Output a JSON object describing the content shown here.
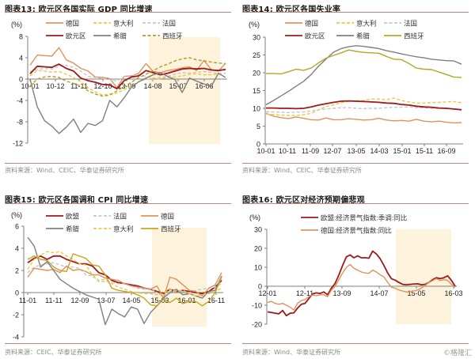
{
  "page": {
    "footer_watermark": "©格隆汇"
  },
  "chart_data": [
    {
      "id": "fig13",
      "type": "line",
      "title": "图表13:  欧元区各国实际 GDP 同比增速",
      "source": "资料来源：Wind、CEIC、华泰证券研究所",
      "ylabel": "(%)",
      "xlabel": "",
      "ylim": [
        -12,
        8
      ],
      "yticks": [
        -12,
        -8,
        -4,
        0,
        4,
        8
      ],
      "xtick_labels": [
        "10-01",
        "10-12",
        "11-11",
        "12-10",
        "13-09",
        "14-08",
        "15-07",
        "16-06"
      ],
      "shaded_range": [
        "14-06",
        "16-12"
      ],
      "legend_position": "top",
      "x_index_count": 28,
      "series": [
        {
          "name": "德国",
          "style": "solid",
          "color": "#e0925a",
          "values": [
            2.6,
            4.5,
            4.4,
            4.3,
            5.9,
            3.6,
            3.0,
            2.0,
            1.5,
            0.4,
            0.3,
            0.1,
            -1.6,
            0.5,
            0.6,
            1.1,
            2.9,
            1.4,
            1.2,
            1.6,
            1.8,
            2.1,
            2.3,
            1.6,
            3.5,
            1.8,
            1.5,
            3.0
          ]
        },
        {
          "name": "意大利",
          "style": "dashed",
          "color": "#f0c83c",
          "values": [
            0.6,
            1.6,
            1.5,
            1.3,
            1.4,
            0.9,
            0.3,
            -0.5,
            -1.6,
            -2.4,
            -3.0,
            -2.8,
            -2.6,
            -2.0,
            -1.2,
            -0.5,
            0.0,
            -0.1,
            0.1,
            0.3,
            0.4,
            0.6,
            0.9,
            1.0,
            0.8,
            0.8,
            1.0,
            1.1
          ]
        },
        {
          "name": "法国",
          "style": "dashed",
          "color": "#c8c4cc",
          "values": [
            1.4,
            1.8,
            2.0,
            1.9,
            2.4,
            2.6,
            2.2,
            1.5,
            0.5,
            0.3,
            0.1,
            -0.1,
            -0.4,
            0.5,
            0.7,
            0.8,
            0.5,
            0.2,
            0.3,
            0.5,
            0.9,
            1.2,
            1.1,
            1.3,
            1.4,
            1.3,
            1.0,
            1.1
          ]
        },
        {
          "name": "欧元区",
          "style": "solid",
          "color": "#a01818",
          "values": [
            1.0,
            2.4,
            2.3,
            2.2,
            2.8,
            2.0,
            1.5,
            0.2,
            -0.3,
            -0.6,
            -1.0,
            -1.1,
            -1.8,
            -0.3,
            0.4,
            0.6,
            1.6,
            1.2,
            0.8,
            1.1,
            1.5,
            1.9,
            2.0,
            1.9,
            2.0,
            1.7,
            1.6,
            1.8
          ]
        },
        {
          "name": "希腊",
          "style": "solid",
          "color": "#7f7f7f",
          "values": [
            0.0,
            -5.2,
            -7.8,
            -8.8,
            -10.2,
            -9.0,
            -7.5,
            -10.0,
            -8.3,
            -8.7,
            -7.8,
            -4.0,
            -5.2,
            -3.5,
            -1.5,
            -0.5,
            0.2,
            0.8,
            1.2,
            0.5,
            -0.1,
            -2.5,
            0.2,
            -0.4,
            -0.9,
            -1.4,
            1.1,
            0.3
          ]
        },
        {
          "name": "西班牙",
          "style": "dashed",
          "color": "#b49a22",
          "values": [
            -1.3,
            0.0,
            0.4,
            0.5,
            0.3,
            -0.4,
            -0.8,
            -1.3,
            -2.2,
            -2.8,
            -3.2,
            -3.0,
            -2.2,
            -1.4,
            -0.6,
            0.3,
            0.9,
            1.6,
            2.3,
            2.8,
            3.4,
            3.8,
            4.0,
            3.6,
            3.4,
            3.2,
            3.0,
            2.9
          ]
        }
      ]
    },
    {
      "id": "fig14",
      "type": "line",
      "title": "图表14:  欧元区各国失业率",
      "source": "资料来源：Wind、CEIC、华泰证券研究所",
      "ylabel": "(%)",
      "xlabel": "",
      "ylim": [
        0,
        30
      ],
      "yticks": [
        0,
        5,
        10,
        15,
        20,
        25,
        30
      ],
      "xtick_labels": [
        "10-01",
        "10-11",
        "11-09",
        "12-07",
        "13-05",
        "14-03",
        "15-01",
        "15-11",
        "16-09"
      ],
      "legend_position": "top",
      "x_index_count": 27,
      "series": [
        {
          "name": "德国",
          "style": "solid",
          "color": "#e0925a",
          "values": [
            8.6,
            7.8,
            7.4,
            7.1,
            7.6,
            7.2,
            6.8,
            6.7,
            7.3,
            6.8,
            6.8,
            7.1,
            6.9,
            6.7,
            6.8,
            7.2,
            6.7,
            6.5,
            6.6,
            6.4,
            6.9,
            6.4,
            6.2,
            6.4,
            6.1,
            5.9,
            6.0
          ]
        },
        {
          "name": "意大利",
          "style": "dashed",
          "color": "#f0c83c",
          "values": [
            8.4,
            8.3,
            8.1,
            8.0,
            8.0,
            8.2,
            8.6,
            9.6,
            10.5,
            11.0,
            11.6,
            12.0,
            12.1,
            12.2,
            12.6,
            12.6,
            12.4,
            12.9,
            12.2,
            11.8,
            11.5,
            11.5,
            11.6,
            11.7,
            11.8,
            11.9,
            11.6
          ]
        },
        {
          "name": "法国",
          "style": "dashed",
          "color": "#c8c4cc",
          "values": [
            9.0,
            9.0,
            8.9,
            8.8,
            8.9,
            9.0,
            9.3,
            9.6,
            9.8,
            10.0,
            10.2,
            10.2,
            10.0,
            9.9,
            10.0,
            10.0,
            10.2,
            10.3,
            10.3,
            10.4,
            10.2,
            10.2,
            10.0,
            10.0,
            9.9,
            9.8,
            9.7
          ]
        },
        {
          "name": "欧元区",
          "style": "solid",
          "color": "#a01818",
          "values": [
            10.1,
            10.1,
            10.0,
            10.0,
            9.9,
            10.0,
            10.4,
            10.9,
            11.3,
            11.7,
            12.0,
            12.1,
            12.0,
            11.9,
            11.8,
            11.7,
            11.5,
            11.4,
            11.1,
            10.9,
            10.6,
            10.4,
            10.3,
            10.1,
            10.0,
            9.8,
            9.6
          ]
        },
        {
          "name": "希腊",
          "style": "solid",
          "color": "#7f7f7f",
          "values": [
            11.0,
            12.2,
            13.5,
            14.8,
            16.2,
            17.6,
            19.5,
            21.9,
            23.9,
            25.8,
            26.8,
            27.3,
            27.6,
            27.4,
            27.1,
            26.8,
            26.2,
            25.8,
            25.3,
            24.9,
            24.5,
            24.2,
            23.8,
            23.6,
            23.4,
            23.3,
            22.4
          ]
        },
        {
          "name": "西班牙",
          "style": "solid",
          "color": "#b4a823",
          "values": [
            19.8,
            19.8,
            19.7,
            20.3,
            21.0,
            20.7,
            21.3,
            22.8,
            24.1,
            24.9,
            25.6,
            26.4,
            26.0,
            25.7,
            25.6,
            25.5,
            24.6,
            23.8,
            23.7,
            22.6,
            21.3,
            21.0,
            20.9,
            20.2,
            19.5,
            18.8,
            18.7
          ]
        }
      ]
    },
    {
      "id": "fig15",
      "type": "line",
      "title": "图表15:  欧元区各国调和 CPI 同比增速",
      "source": "资料来源：CEIC、华泰证券研究所",
      "ylabel": "(%)",
      "xlabel": "",
      "ylim": [
        -4,
        6
      ],
      "yticks": [
        -4,
        -2,
        0,
        2,
        4,
        6
      ],
      "xtick_labels": [
        "11-01",
        "11-11",
        "12-09",
        "13-07",
        "14-05",
        "15-03",
        "16-01",
        "16-11"
      ],
      "shaded_range": [
        "14-11",
        "16-08"
      ],
      "legend_position": "top",
      "x_index_count": 31,
      "series": [
        {
          "name": "欧盟",
          "style": "solid",
          "color": "#a01818",
          "values": [
            2.7,
            3.1,
            3.3,
            3.0,
            3.3,
            3.3,
            3.0,
            2.8,
            2.6,
            2.6,
            2.4,
            1.8,
            1.6,
            1.1,
            0.9,
            0.8,
            0.7,
            0.6,
            0.4,
            0.3,
            0.1,
            -0.1,
            0.3,
            0.1,
            0.2,
            0.1,
            0.0,
            -0.1,
            0.1,
            0.5,
            1.1
          ]
        },
        {
          "name": "法国",
          "style": "dashed",
          "color": "#c8c4cc",
          "values": [
            1.8,
            2.3,
            2.5,
            2.6,
            2.7,
            2.5,
            2.3,
            2.3,
            2.2,
            1.6,
            1.5,
            1.0,
            1.0,
            0.9,
            0.8,
            0.8,
            0.6,
            0.4,
            0.3,
            0.4,
            0.0,
            -0.4,
            0.1,
            0.2,
            0.1,
            0.0,
            0.2,
            0.3,
            0.4,
            0.5,
            0.8
          ]
        },
        {
          "name": "德国",
          "style": "solid",
          "color": "#e0925a",
          "values": [
            1.4,
            2.2,
            2.1,
            2.0,
            2.1,
            1.8,
            2.4,
            2.0,
            2.1,
            1.9,
            1.6,
            1.6,
            1.3,
            1.2,
            1.1,
            0.8,
            0.6,
            0.5,
            0.4,
            0.3,
            0.6,
            -0.5,
            1.4,
            1.2,
            0.7,
            0.2,
            0.1,
            -0.3,
            0.4,
            0.7,
            1.8
          ]
        },
        {
          "name": "希腊",
          "style": "solid",
          "color": "#7f7f7f",
          "values": [
            5.0,
            4.2,
            2.3,
            2.8,
            2.0,
            1.2,
            0.8,
            0.4,
            0.1,
            -0.2,
            -0.4,
            -0.6,
            -2.9,
            -1.5,
            -1.9,
            -2.2,
            -1.3,
            -1.5,
            -2.8,
            -1.8,
            -1.2,
            -0.5,
            0.0,
            0.3,
            -0.2,
            -0.1,
            -0.3,
            -0.5,
            0.1,
            0.2,
            1.5
          ]
        },
        {
          "name": "意大利",
          "style": "dashed",
          "color": "#f0c83c",
          "values": [
            2.1,
            3.0,
            3.4,
            3.7,
            3.6,
            3.7,
            3.3,
            3.0,
            2.6,
            2.5,
            1.6,
            1.1,
            1.2,
            0.8,
            0.5,
            0.3,
            0.1,
            0.0,
            -0.1,
            -0.1,
            -0.2,
            -0.1,
            0.3,
            0.1,
            0.2,
            -0.1,
            -0.3,
            -0.2,
            -0.1,
            0.1,
            0.4
          ]
        },
        {
          "name": "西班牙",
          "style": "solid",
          "color": "#c8a41e",
          "values": [
            3.0,
            3.3,
            3.0,
            2.9,
            2.3,
            2.0,
            1.9,
            3.5,
            3.3,
            3.1,
            2.5,
            2.4,
            1.6,
            0.4,
            0.2,
            0.1,
            0.0,
            -0.2,
            -0.5,
            -1.1,
            -1.2,
            -0.6,
            -0.9,
            -0.5,
            -1.0,
            -0.8,
            -0.8,
            -1.2,
            -0.8,
            0.0,
            1.4
          ]
        }
      ]
    },
    {
      "id": "fig16",
      "type": "line",
      "title": "图表16:  欧元区对经济预期偏悲观",
      "source": "资料来源：Wind、华泰证券研究所",
      "ylabel": "(%)",
      "xlabel": "",
      "ylim": [
        -20,
        30
      ],
      "yticks": [
        -20,
        -10,
        0,
        10,
        20,
        30
      ],
      "xtick_labels": [
        "12-01",
        "12-11",
        "13-09",
        "14-07",
        "15-05",
        "16-03"
      ],
      "shaded_range": [
        "14-12",
        "16-02"
      ],
      "legend_position": "top",
      "x_index_count": 51,
      "series": [
        {
          "name": "欧盟:经济景气指数:季调:同比",
          "style": "solid",
          "color": "#a01818",
          "values": [
            -13.5,
            -13.8,
            -14.2,
            -14.5,
            -12.8,
            -15.5,
            -14.2,
            -14.0,
            -11.5,
            -9.5,
            -9.0,
            -6.5,
            -4.0,
            -3.5,
            -3.8,
            -3.0,
            -4.5,
            -1.0,
            1.5,
            6.0,
            11.0,
            15.5,
            16.5,
            15.0,
            16.0,
            15.0,
            15.0,
            14.8,
            18.5,
            17.0,
            14.5,
            11.0,
            7.0,
            4.0,
            3.2,
            2.0,
            1.0,
            0.8,
            1.0,
            1.2,
            1.3,
            0.8,
            1.0,
            2.0,
            3.5,
            4.5,
            4.0,
            4.5,
            5.5,
            3.0,
            0.0
          ]
        },
        {
          "name": "德国:经济景气指数:同比",
          "style": "solid",
          "color": "#e0925a",
          "values": [
            -8.5,
            -8.0,
            -9.0,
            -9.5,
            -9.0,
            -10.0,
            -11.0,
            -12.5,
            -9.0,
            -7.5,
            -7.0,
            -5.5,
            -4.5,
            -5.0,
            -4.5,
            -4.5,
            -5.5,
            -2.0,
            0.0,
            3.5,
            7.0,
            10.0,
            11.5,
            9.5,
            8.5,
            7.5,
            7.0,
            6.8,
            8.5,
            7.5,
            6.0,
            5.0,
            2.0,
            -0.5,
            -1.0,
            -2.0,
            -2.5,
            -3.0,
            -3.0,
            -2.5,
            -2.0,
            -1.0,
            0.5,
            2.0,
            3.0,
            4.0,
            3.0,
            3.5,
            3.0,
            1.0,
            -0.5
          ]
        }
      ]
    }
  ]
}
